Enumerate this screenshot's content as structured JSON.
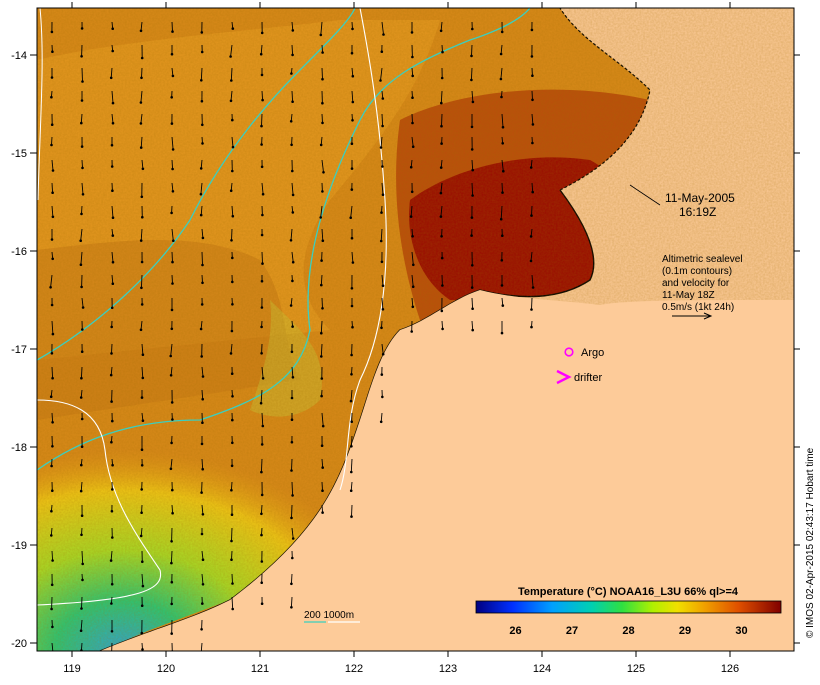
{
  "map": {
    "date_line": "11-May-2005",
    "time_line": "16:19Z",
    "info_lines": [
      "Altimetric sealevel",
      "(0.1m contours)",
      "and velocity for",
      "11-May 18Z",
      "0.5m/s (1kt 24h)"
    ],
    "argo_label": "Argo",
    "drifter_label": "drifter",
    "bathy_label": "200 1000m",
    "credit": "© IMOS 02-Apr-2015 02:43:17 Hobart time",
    "lat_labels": [
      "-14",
      "-15",
      "-16",
      "-17",
      "-18",
      "-19",
      "-20"
    ],
    "lon_labels": [
      "119",
      "120",
      "121",
      "122",
      "123",
      "124",
      "125",
      "126"
    ],
    "colorbar": {
      "title": "Temperature (°C) NOAA16_L3U 66% ql>=4",
      "ticks": [
        "26",
        "27",
        "28",
        "29",
        "30"
      ],
      "min": 25.3,
      "max": 30.7
    },
    "colors": {
      "land": "#fdcb99",
      "warm_sea": "#d98a1a",
      "hot_sea": "#9a0b02",
      "cool_sea": "#c7e020",
      "contour_200": "#3bcfbf",
      "contour_1000": "#ffffff",
      "argo": "#ff00ff"
    }
  }
}
